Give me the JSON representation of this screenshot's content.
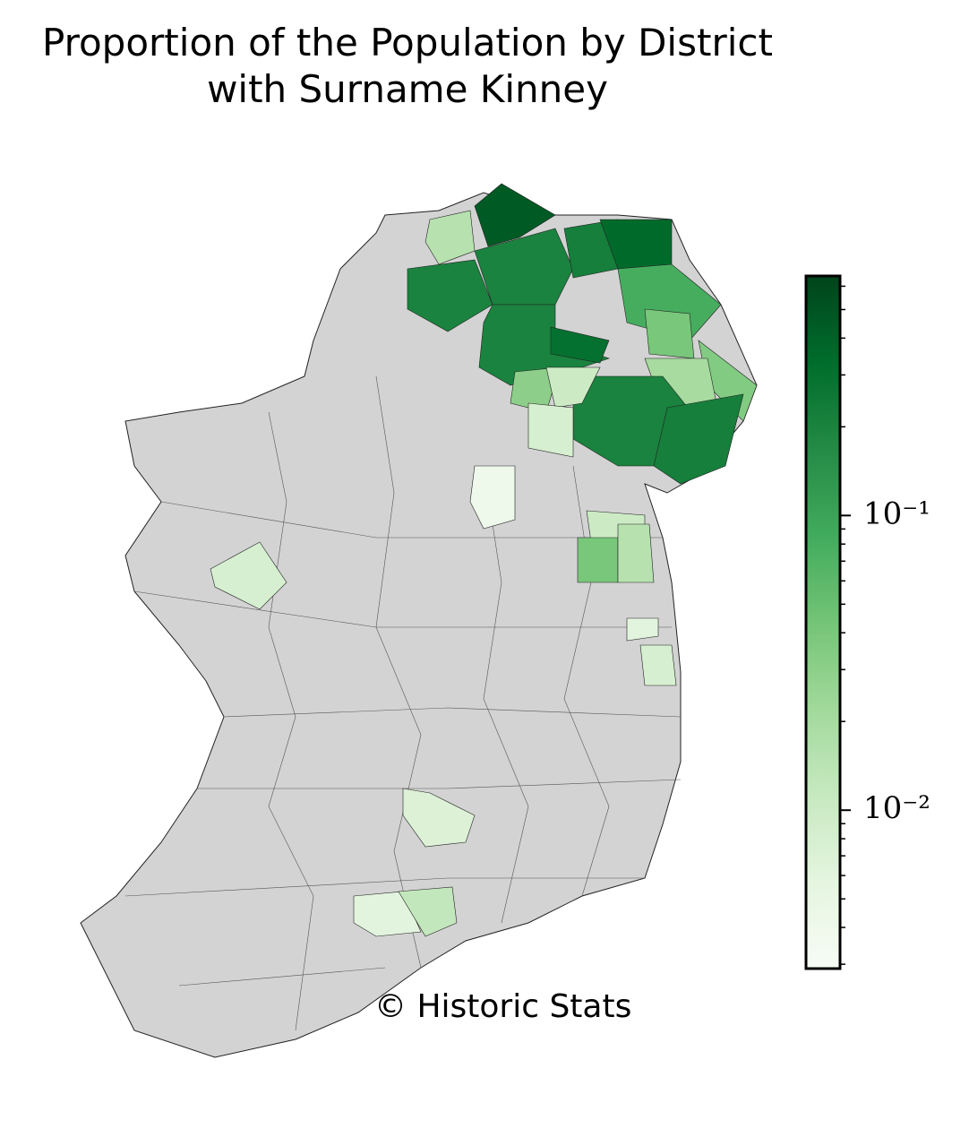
{
  "chart_data": {
    "type": "choropleth",
    "title": "Proportion of the Population by District\nwith Surname Kinney",
    "credit": "© Historic Stats",
    "no_data_color": "#d3d3d3",
    "colormap": [
      "#f7fcf5",
      "#e5f5e0",
      "#c7e9c0",
      "#a1d99b",
      "#74c476",
      "#41ab5d",
      "#238b45",
      "#006d2c",
      "#00441b"
    ],
    "log_scale": true,
    "ylim": [
      0.0029,
      0.65
    ],
    "yticks": [
      {
        "value": 0.1,
        "label": "10⁻¹"
      },
      {
        "value": 0.01,
        "label": "10⁻²"
      }
    ],
    "values": [
      0.45,
      0.015,
      0.2,
      0.2,
      0.22,
      0.35,
      0.08,
      0.2,
      0.3,
      0.04,
      0.035,
      0.02,
      0.2,
      0.22,
      0.03,
      0.01,
      0.008,
      0.004,
      0.008,
      0.01,
      0.04,
      0.015,
      0.006,
      0.008,
      0.007,
      0.006,
      0.012
    ]
  }
}
